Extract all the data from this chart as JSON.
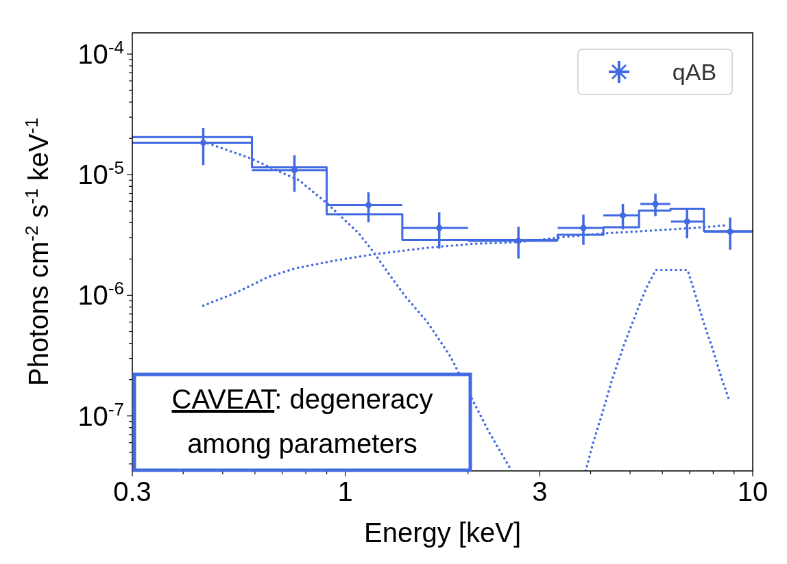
{
  "chart_data": {
    "type": "scatter",
    "xlabel": "Energy [keV]",
    "ylabel": "Photons cm$^{-2}$ s$^{-1}$ keV$^{-1}$",
    "log": "xy",
    "grid": false,
    "legend": "top right",
    "xlim": [
      0.3,
      10
    ],
    "ylim": [
      3.5e-08,
      0.00015
    ],
    "xticks": [
      0.3,
      {
        "value": 0.4,
        "label": null
      },
      {
        "value": 0.5,
        "label": null
      },
      {
        "value": 0.6,
        "label": null
      },
      {
        "value": 0.7,
        "label": null
      },
      {
        "value": 0.8,
        "label": null
      },
      {
        "value": 0.9,
        "label": null
      },
      1,
      {
        "value": 2,
        "label": null
      },
      3,
      {
        "value": 4,
        "label": null
      },
      {
        "value": 5,
        "label": null
      },
      {
        "value": 6,
        "label": null
      },
      {
        "value": 7,
        "label": null
      },
      {
        "value": 8,
        "label": null
      },
      {
        "value": 9,
        "label": null
      },
      10
    ],
    "yticks": [
      {
        "value": 4e-08,
        "label": null
      },
      {
        "value": 5e-08,
        "label": null
      },
      {
        "value": 6e-08,
        "label": null
      },
      {
        "value": 7e-08,
        "label": null
      },
      {
        "value": 8e-08,
        "label": null
      },
      {
        "value": 9e-08,
        "label": null
      },
      {
        "value": 1e-07,
        "label": "10$^{-7}$"
      },
      {
        "value": 2e-07,
        "label": null
      },
      {
        "value": 3e-07,
        "label": null
      },
      {
        "value": 4e-07,
        "label": null
      },
      {
        "value": 5e-07,
        "label": null
      },
      {
        "value": 6e-07,
        "label": null
      },
      {
        "value": 7e-07,
        "label": null
      },
      {
        "value": 8e-07,
        "label": null
      },
      {
        "value": 9e-07,
        "label": null
      },
      {
        "value": 1e-06,
        "label": "10$^{-6}$"
      },
      {
        "value": 2e-06,
        "label": null
      },
      {
        "value": 3e-06,
        "label": null
      },
      {
        "value": 4e-06,
        "label": null
      },
      {
        "value": 5e-06,
        "label": null
      },
      {
        "value": 6e-06,
        "label": null
      },
      {
        "value": 7e-06,
        "label": null
      },
      {
        "value": 8e-06,
        "label": null
      },
      {
        "value": 9e-06,
        "label": null
      },
      {
        "value": 1e-05,
        "label": "10$^{-5}$"
      },
      {
        "value": 2e-05,
        "label": null
      },
      {
        "value": 3e-05,
        "label": null
      },
      {
        "value": 4e-05,
        "label": null
      },
      {
        "value": 5e-05,
        "label": null
      },
      {
        "value": 6e-05,
        "label": null
      },
      {
        "value": 7e-05,
        "label": null
      },
      {
        "value": 8e-05,
        "label": null
      },
      {
        "value": 9e-05,
        "label": null
      },
      {
        "value": 0.0001,
        "label": "10$^{-4}$"
      }
    ],
    "annotations": [
      "CAVEAT: degeneracy among parameters"
    ],
    "series": [
      {
        "type": "step",
        "color": "#4169e1",
        "line_style": "solid",
        "x": [
          0.3,
          0.59,
          0.9,
          1.38,
          2.0,
          3.32,
          4.3,
          5.26,
          6.28,
          7.59,
          10
        ],
        "values": [
          2.05e-05,
          1.15e-05,
          4.7e-06,
          2.88e-06,
          2.88e-06,
          3.18e-06,
          3.67e-06,
          5.03e-06,
          5.2e-06,
          3.4e-06,
          3.4e-06
        ]
      },
      {
        "type": "line",
        "color": "#4169e1",
        "line_style": "dotted",
        "x": [
          0.448,
          0.588,
          0.677,
          0.771,
          0.901,
          1.077,
          1.18,
          1.28,
          1.4,
          1.59,
          1.81,
          2.25,
          2.56
        ],
        "values": [
          1.88e-05,
          1.36e-05,
          1.09e-05,
          8.97e-06,
          5.8e-06,
          3.29e-06,
          2.22e-06,
          1.5e-06,
          9.9e-07,
          6e-07,
          3.12e-07,
          7.4e-08,
          3.5e-08
        ]
      },
      {
        "type": "line",
        "color": "#4169e1",
        "line_style": "dotted",
        "x": [
          0.448,
          0.543,
          0.644,
          0.752,
          0.949,
          1.18,
          1.59,
          2.06,
          2.66,
          3.32,
          4.29,
          5.56,
          7.18,
          8.5
        ],
        "values": [
          8.2e-07,
          1.06e-06,
          1.41e-06,
          1.67e-06,
          1.95e-06,
          2.19e-06,
          2.48e-06,
          2.67e-06,
          2.76e-06,
          3.01e-06,
          3.26e-06,
          3.43e-06,
          3.62e-06,
          3.79e-06
        ]
      },
      {
        "type": "line",
        "color": "#4169e1",
        "line_style": "dotted",
        "x": [
          3.89,
          4.07,
          4.29,
          4.52,
          4.83,
          5.15,
          5.48,
          5.78,
          6.92,
          7.2,
          7.57,
          7.98,
          8.4,
          8.73
        ],
        "values": [
          3.5e-08,
          6.2e-08,
          1.1e-07,
          2.02e-07,
          3.88e-07,
          6.84e-07,
          1.15e-06,
          1.62e-06,
          1.62e-06,
          1.06e-06,
          6e-07,
          3.56e-07,
          2.02e-07,
          1.39e-07
        ]
      },
      {
        "name": "qAB",
        "color": "#4169e1",
        "marker": "circle",
        "x": [
          0.448,
          0.75,
          1.14,
          1.7,
          2.66,
          3.84,
          4.8,
          5.77,
          6.9,
          8.8
        ],
        "values": [
          1.84e-05,
          1.09e-05,
          5.6e-06,
          3.62e-06,
          2.83e-06,
          3.62e-06,
          4.6e-06,
          5.72e-06,
          4.09e-06,
          3.37e-06
        ],
        "errors": [
          [
            1.2e-05,
            2.44e-05
          ],
          [
            7.2e-06,
            1.45e-05
          ],
          [
            4.04e-06,
            7.15e-06
          ],
          [
            2.44e-06,
            4.87e-06
          ],
          [
            2.02e-06,
            3.7e-06
          ],
          [
            2.62e-06,
            4.67e-06
          ],
          [
            3.52e-06,
            5.72e-06
          ],
          [
            4.52e-06,
            6.97e-06
          ],
          [
            2.97e-06,
            5.13e-06
          ],
          [
            2.39e-06,
            4.41e-06
          ]
        ],
        "xerrors": [
          [
            0.3,
            0.59
          ],
          [
            0.59,
            0.9
          ],
          [
            0.9,
            1.38
          ],
          [
            1.38,
            2.0
          ],
          [
            2.0,
            3.32
          ],
          [
            3.32,
            4.3
          ],
          [
            4.3,
            5.26
          ],
          [
            5.3,
            6.28
          ],
          [
            6.3,
            7.59
          ],
          [
            7.6,
            10
          ]
        ]
      }
    ]
  }
}
